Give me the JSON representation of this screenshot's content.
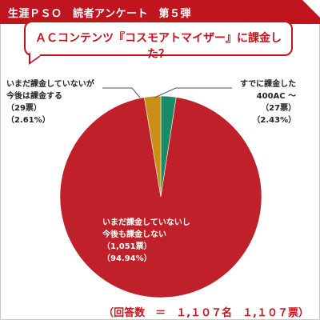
{
  "header": {
    "title": "生涯ＰＳＯ　読者アンケート　第５弾"
  },
  "question": "ＡＣコンテンツ『コスモアトマイザー』に課金した？",
  "labels": {
    "not_yet_will_pay": {
      "line1": "いまだ課金していないが",
      "line2": "今後は課金する",
      "line3": "（29票）",
      "line4": "（2.61%）"
    },
    "already_paid": {
      "line1": "すでに課金した",
      "line2": "400AC ～",
      "line3": "（27票）",
      "line4": "（2.43%）"
    },
    "not_paid_wont_pay": {
      "line1": "いまだ課金していないし",
      "line2": "今後も課金しない",
      "line3": "（1,051票）",
      "line4": "（94.94%）"
    }
  },
  "footer": "（回答数　＝　１,１０７名　１,１０７票）",
  "colors": {
    "brand_red": "#c0141e",
    "slice_red": "#c0202a",
    "slice_gold": "#c89016",
    "slice_green": "#178a66"
  },
  "chart_data": {
    "type": "pie",
    "title": "ＡＣコンテンツ『コスモアトマイザー』に課金した？",
    "slices": [
      {
        "label": "すでに課金した 400AC ～",
        "votes": 27,
        "percent": 2.43,
        "color": "#178a66"
      },
      {
        "label": "いまだ課金していないし 今後も課金しない",
        "votes": 1051,
        "percent": 94.94,
        "color": "#c0202a"
      },
      {
        "label": "いまだ課金していないが 今後は課金する",
        "votes": 29,
        "percent": 2.61,
        "color": "#c89016"
      }
    ],
    "total_respondents": 1107,
    "total_votes": 1107
  }
}
